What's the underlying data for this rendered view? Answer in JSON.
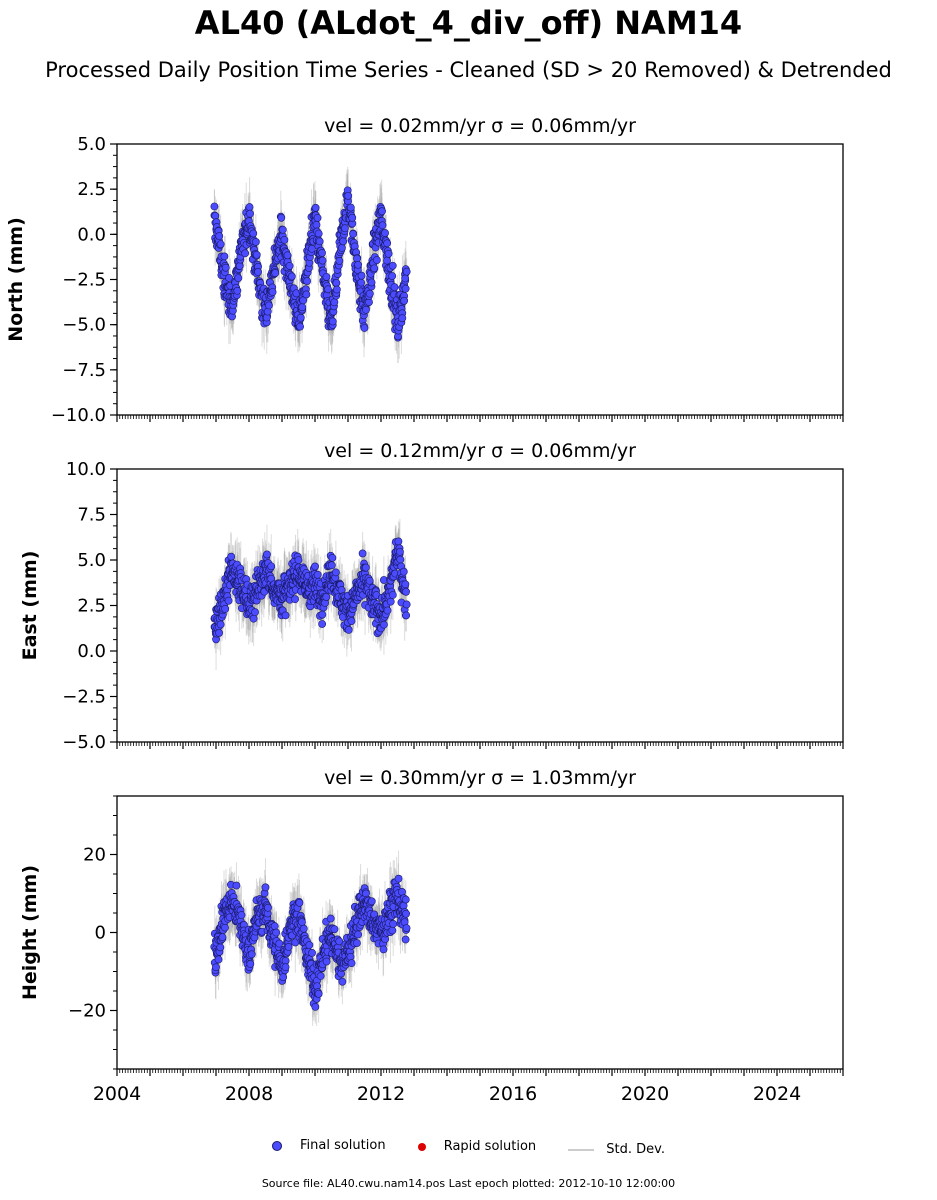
{
  "title": "AL40 (ALdot_4_div_off) NAM14",
  "subtitle": "Processed Daily Position Time Series - Cleaned (SD > 20 Removed) & Detrended",
  "legend": {
    "final": "Final solution",
    "rapid": "Rapid solution",
    "std": "Std. Dev."
  },
  "source_note": "Source file: AL40.cwu.nam14.pos  Last epoch plotted: 2012-10-10 12:00:00",
  "colors": {
    "final": "#4b4bff",
    "final_edge": "#1a1a66",
    "rapid": "#dd0000",
    "std": "#9a9a9a"
  },
  "chart_data": [
    {
      "type": "scatter",
      "title": "vel = 0.02mm/yr   σ = 0.06mm/yr",
      "ylabel": "North (mm)",
      "xlabel": "",
      "xlim": [
        2004,
        2026
      ],
      "ylim": [
        -10,
        5
      ],
      "yticks": [
        -10.0,
        -7.5,
        -5.0,
        -2.5,
        0.0,
        2.5,
        5.0
      ],
      "ytick_labels": [
        "−10.0",
        "−7.5",
        "−5.0",
        "−2.5",
        "0.0",
        "2.5",
        "5.0"
      ],
      "data_span": [
        2006.95,
        2012.77
      ],
      "series": [
        {
          "name": "Final solution",
          "x": [
            2007.0,
            2007.25,
            2007.5,
            2007.75,
            2008.0,
            2008.25,
            2008.5,
            2008.75,
            2009.0,
            2009.25,
            2009.5,
            2009.75,
            2010.0,
            2010.25,
            2010.5,
            2010.75,
            2011.0,
            2011.25,
            2011.5,
            2011.75,
            2012.0,
            2012.25,
            2012.5,
            2012.75
          ],
          "y": [
            0.5,
            -2.5,
            -4.0,
            -1.0,
            1.0,
            -2.0,
            -4.5,
            -2.0,
            0.0,
            -2.5,
            -5.0,
            -2.0,
            1.0,
            -2.5,
            -5.0,
            -1.0,
            2.0,
            -1.5,
            -4.5,
            -1.5,
            1.0,
            -2.0,
            -5.0,
            -2.5
          ]
        }
      ]
    },
    {
      "type": "scatter",
      "title": "vel = 0.12mm/yr   σ = 0.06mm/yr",
      "ylabel": "East (mm)",
      "xlabel": "",
      "xlim": [
        2004,
        2026
      ],
      "ylim": [
        -5,
        10
      ],
      "yticks": [
        -5.0,
        -2.5,
        0.0,
        2.5,
        5.0,
        7.5,
        10.0
      ],
      "ytick_labels": [
        "−5.0",
        "−2.5",
        "0.0",
        "2.5",
        "5.0",
        "7.5",
        "10.0"
      ],
      "data_span": [
        2006.95,
        2012.77
      ],
      "series": [
        {
          "name": "Final solution",
          "x": [
            2007.0,
            2007.25,
            2007.5,
            2007.75,
            2008.0,
            2008.25,
            2008.5,
            2008.75,
            2009.0,
            2009.25,
            2009.5,
            2009.75,
            2010.0,
            2010.25,
            2010.5,
            2010.75,
            2011.0,
            2011.25,
            2011.5,
            2011.75,
            2012.0,
            2012.25,
            2012.5,
            2012.75
          ],
          "y": [
            1.5,
            3.0,
            4.5,
            3.5,
            2.5,
            3.5,
            4.5,
            3.5,
            3.0,
            3.5,
            4.5,
            3.5,
            3.5,
            3.0,
            4.5,
            3.0,
            2.0,
            3.0,
            4.0,
            2.5,
            2.0,
            3.0,
            5.5,
            3.0
          ]
        }
      ]
    },
    {
      "type": "scatter",
      "title": "vel = 0.30mm/yr   σ = 1.03mm/yr",
      "ylabel": "Height (mm)",
      "xlabel": "",
      "xlim": [
        2004,
        2026
      ],
      "ylim": [
        -35,
        35
      ],
      "yticks": [
        -20,
        0,
        20
      ],
      "ytick_labels": [
        "−20",
        "0",
        "20"
      ],
      "xticks": [
        2004,
        2008,
        2012,
        2016,
        2020,
        2024
      ],
      "xtick_labels": [
        "2004",
        "2008",
        "2012",
        "2016",
        "2020",
        "2024"
      ],
      "data_span": [
        2006.95,
        2012.77
      ],
      "series": [
        {
          "name": "Final solution",
          "x": [
            2007.0,
            2007.25,
            2007.5,
            2007.75,
            2008.0,
            2008.25,
            2008.5,
            2008.75,
            2009.0,
            2009.25,
            2009.5,
            2009.75,
            2010.0,
            2010.25,
            2010.5,
            2010.75,
            2011.0,
            2011.25,
            2011.5,
            2011.75,
            2012.0,
            2012.25,
            2012.5,
            2012.75
          ],
          "y": [
            -5,
            5,
            8,
            2,
            -5,
            4,
            6,
            -2,
            -10,
            2,
            5,
            -5,
            -15,
            -5,
            0,
            -8,
            -5,
            2,
            8,
            2,
            0,
            5,
            10,
            2
          ]
        }
      ]
    }
  ]
}
